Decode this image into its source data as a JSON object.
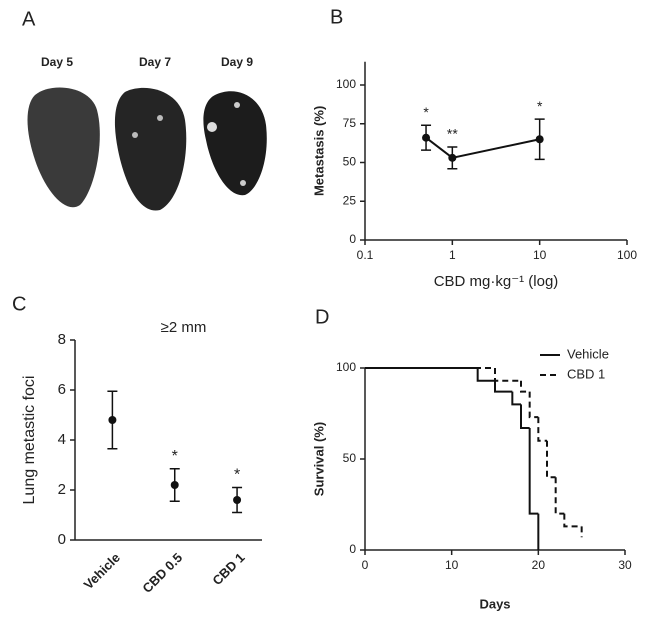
{
  "panel_a": {
    "label": "A",
    "captions": [
      "Day 5",
      "Day 7",
      "Day 9"
    ]
  },
  "chart_data": [
    {
      "type": "line",
      "panel": "B",
      "xlabel": "CBD mg·kg⁻¹ (log)",
      "ylabel": "Metastasis (%)",
      "xscale": "log",
      "x": [
        0.5,
        1,
        10
      ],
      "values": [
        66,
        53,
        65
      ],
      "errors": [
        8,
        7,
        13
      ],
      "annotations": [
        "*",
        "**",
        "*"
      ],
      "color": "#111111",
      "xlim": [
        0.1,
        100
      ],
      "xticks": [
        0.1,
        1,
        10,
        100
      ],
      "ylim": [
        0,
        115
      ],
      "yticks": [
        0,
        25,
        50,
        75,
        100
      ]
    },
    {
      "type": "scatter",
      "panel": "C",
      "title": "≥2 mm",
      "ylabel": "Lung metastic foci",
      "categories": [
        "Vehicle",
        "CBD 0.5",
        "CBD 1"
      ],
      "values": [
        4.8,
        2.2,
        1.6
      ],
      "errors": [
        1.15,
        0.65,
        0.5
      ],
      "annotations": [
        null,
        "*",
        "*"
      ],
      "color": "#111111",
      "ylim": [
        0,
        8
      ],
      "yticks": [
        0,
        2,
        4,
        6,
        8
      ]
    },
    {
      "type": "step",
      "panel": "D",
      "xlabel": "Days",
      "ylabel": "Survival (%)",
      "series": [
        {
          "name": "Vehicle",
          "color": "#111111",
          "dash": false,
          "x": [
            0,
            13,
            15,
            17,
            18,
            19,
            20
          ],
          "values": [
            100,
            93,
            87,
            80,
            67,
            20,
            0
          ]
        },
        {
          "name": "CBD 1",
          "color": "#111111",
          "dash": true,
          "x": [
            0,
            15,
            18,
            19,
            20,
            21,
            22,
            23,
            25
          ],
          "values": [
            100,
            93,
            87,
            73,
            60,
            40,
            20,
            13,
            7
          ]
        }
      ],
      "xlim": [
        0,
        30
      ],
      "xticks": [
        0,
        10,
        20,
        30
      ],
      "ylim": [
        0,
        100
      ],
      "yticks": [
        0,
        50,
        100
      ]
    }
  ]
}
